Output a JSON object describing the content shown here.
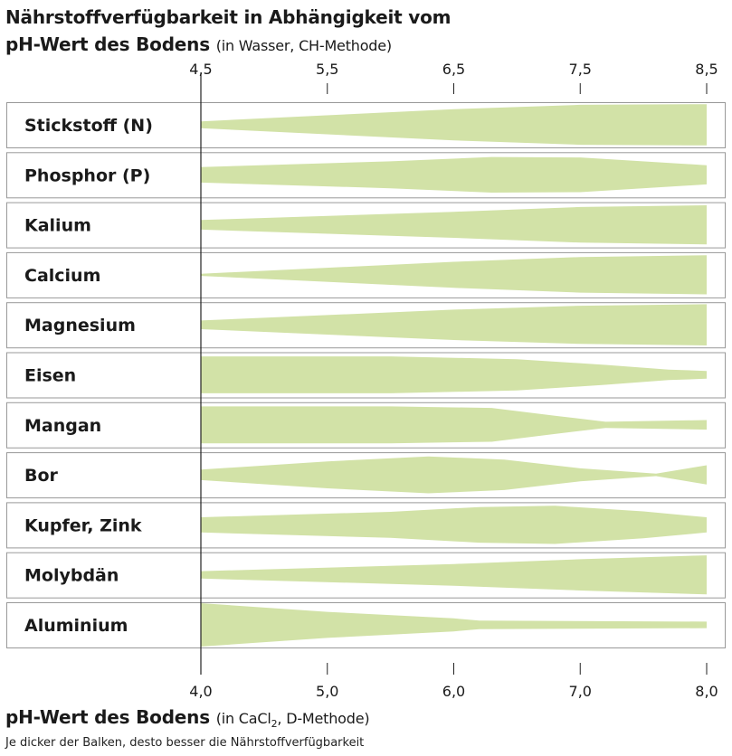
{
  "title": {
    "line1": "Nährstoffverfügbarkeit in Abhängigkeit vom",
    "line2_bold": "pH-Wert des Bodens",
    "line2_light": "(in Wasser, CH-Methode)"
  },
  "bottom_axis_title": {
    "bold": "pH-Wert des Bodens",
    "light_prefix": "(in CaCl",
    "subscript": "2",
    "light_suffix": ", D-Methode)"
  },
  "footnote": "Je dicker der Balken, desto besser die Nährstoffverfügbarkeit",
  "colors": {
    "band": "#d2e2a7",
    "border": "#999999",
    "axis": "#222222"
  },
  "chart_data": {
    "type": "area",
    "top_axis": {
      "label": "pH-Wert des Bodens (in Wasser, CH-Methode)",
      "ticks": [
        "4,5",
        "5,5",
        "6,5",
        "7,5",
        "8,5"
      ],
      "range": [
        4.5,
        8.5
      ]
    },
    "bottom_axis": {
      "label": "pH-Wert des Bodens (in CaCl2, D-Methode)",
      "ticks": [
        "4,0",
        "5,0",
        "6,0",
        "7,0",
        "8,0"
      ],
      "range": [
        4.0,
        8.0
      ]
    },
    "value_meaning": "relative band thickness (0-1) at pH in CaCl2",
    "series": [
      {
        "name": "Stickstoff (N)",
        "points": [
          [
            4.0,
            0.16
          ],
          [
            6.0,
            0.72
          ],
          [
            7.0,
            0.92
          ],
          [
            8.0,
            0.95
          ]
        ]
      },
      {
        "name": "Phosphor (P)",
        "points": [
          [
            4.0,
            0.36
          ],
          [
            5.5,
            0.62
          ],
          [
            6.3,
            0.82
          ],
          [
            7.0,
            0.8
          ],
          [
            8.0,
            0.44
          ]
        ]
      },
      {
        "name": "Kalium",
        "points": [
          [
            4.0,
            0.22
          ],
          [
            6.0,
            0.6
          ],
          [
            7.0,
            0.82
          ],
          [
            8.0,
            0.9
          ]
        ]
      },
      {
        "name": "Calcium",
        "points": [
          [
            4.0,
            0.05
          ],
          [
            6.0,
            0.6
          ],
          [
            7.0,
            0.82
          ],
          [
            8.0,
            0.9
          ]
        ]
      },
      {
        "name": "Magnesium",
        "points": [
          [
            4.0,
            0.2
          ],
          [
            6.0,
            0.7
          ],
          [
            7.0,
            0.88
          ],
          [
            8.0,
            0.95
          ]
        ]
      },
      {
        "name": "Eisen",
        "points": [
          [
            4.0,
            0.85
          ],
          [
            5.5,
            0.85
          ],
          [
            6.5,
            0.72
          ],
          [
            7.2,
            0.46
          ],
          [
            7.7,
            0.24
          ],
          [
            8.0,
            0.18
          ]
        ]
      },
      {
        "name": "Mangan",
        "points": [
          [
            4.0,
            0.85
          ],
          [
            5.5,
            0.85
          ],
          [
            6.3,
            0.78
          ],
          [
            6.8,
            0.42
          ],
          [
            7.2,
            0.14
          ],
          [
            8.0,
            0.22
          ]
        ]
      },
      {
        "name": "Bor",
        "points": [
          [
            4.0,
            0.24
          ],
          [
            5.0,
            0.62
          ],
          [
            5.8,
            0.85
          ],
          [
            6.4,
            0.7
          ],
          [
            7.0,
            0.3
          ],
          [
            7.6,
            0.06
          ],
          [
            8.0,
            0.44
          ]
        ]
      },
      {
        "name": "Kupfer, Zink",
        "points": [
          [
            4.0,
            0.35
          ],
          [
            5.5,
            0.6
          ],
          [
            6.2,
            0.82
          ],
          [
            6.8,
            0.88
          ],
          [
            7.5,
            0.62
          ],
          [
            8.0,
            0.35
          ]
        ]
      },
      {
        "name": "Molybdän",
        "points": [
          [
            4.0,
            0.17
          ],
          [
            6.0,
            0.5
          ],
          [
            7.0,
            0.72
          ],
          [
            8.0,
            0.9
          ]
        ]
      },
      {
        "name": "Aluminium",
        "points": [
          [
            4.0,
            1.0
          ],
          [
            5.0,
            0.6
          ],
          [
            6.0,
            0.3
          ],
          [
            6.2,
            0.2
          ],
          [
            8.0,
            0.15
          ]
        ]
      }
    ]
  }
}
